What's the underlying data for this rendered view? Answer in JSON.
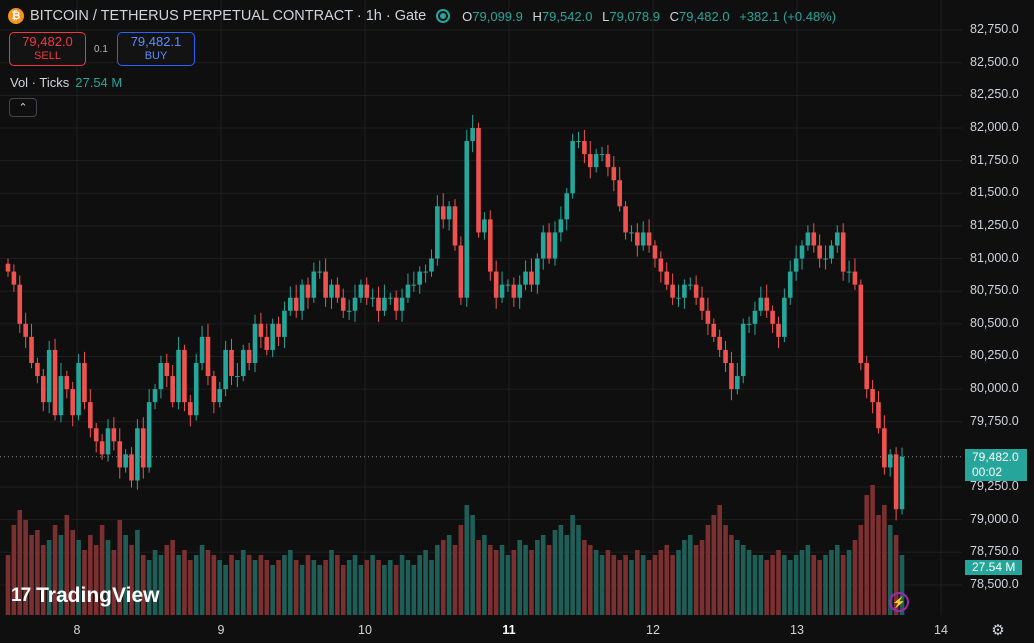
{
  "header": {
    "coin_icon": "bitcoin-icon",
    "coin_glyph": "₿",
    "symbol": "BITCOIN / TETHERUS PERPETUAL CONTRACT · 1h · Gate",
    "status": "market-open-icon",
    "ohlc": {
      "o_label": "O",
      "o": "79,099.9",
      "h_label": "H",
      "h": "79,542.0",
      "l_label": "L",
      "l": "79,078.9",
      "c_label": "C",
      "c": "79,482.0",
      "change": "+382.1 (+0.48%)"
    }
  },
  "trade": {
    "sell_price": "79,482.0",
    "sell_label": "SELL",
    "spread": "0.1",
    "buy_price": "79,482.1",
    "buy_label": "BUY"
  },
  "volume_legend": {
    "label": "Vol · Ticks",
    "value": "27.54 M"
  },
  "collapse_glyph": "⌃",
  "last_price": {
    "price": "79,482.0",
    "countdown": "00:02"
  },
  "last_volume": "27.54 M",
  "brand": {
    "mark": "17",
    "name": "TradingView"
  },
  "bolt_glyph": "⚡",
  "gear_glyph": "⚙",
  "colors": {
    "up": "#26a69a",
    "down": "#ef5350",
    "background": "#0f0f0f",
    "grid": "#1e1e1e"
  },
  "chart_data": {
    "type": "candlestick",
    "y_axis_ticks": [
      "82,750.0",
      "82,500.0",
      "82,250.0",
      "82,000.0",
      "81,750.0",
      "81,500.0",
      "81,250.0",
      "81,000.0",
      "80,750.0",
      "80,500.0",
      "80,250.0",
      "80,000.0",
      "79,750.0",
      "79,250.0",
      "79,000.0",
      "78,750.0",
      "78,500.0"
    ],
    "ylim": [
      78400,
      82850
    ],
    "x_axis_ticks": [
      {
        "label": "8",
        "bold": false
      },
      {
        "label": "9",
        "bold": false
      },
      {
        "label": "10",
        "bold": false
      },
      {
        "label": "11",
        "bold": true
      },
      {
        "label": "12",
        "bold": false
      },
      {
        "label": "13",
        "bold": false
      },
      {
        "label": "14",
        "bold": false
      }
    ],
    "closes": [
      80900,
      80800,
      80500,
      80400,
      80200,
      80100,
      79900,
      80300,
      79800,
      80100,
      80000,
      79800,
      80200,
      79900,
      79700,
      79600,
      79500,
      79700,
      79600,
      79400,
      79500,
      79300,
      79700,
      79400,
      79900,
      80000,
      80200,
      80100,
      79900,
      80300,
      79900,
      79800,
      80200,
      80400,
      80100,
      79900,
      80000,
      80300,
      80100,
      80100,
      80300,
      80200,
      80500,
      80400,
      80300,
      80500,
      80400,
      80600,
      80700,
      80600,
      80800,
      80700,
      80900,
      80900,
      80700,
      80800,
      80700,
      80600,
      80600,
      80700,
      80800,
      80700,
      80700,
      80600,
      80700,
      80700,
      80600,
      80700,
      80800,
      80800,
      80900,
      80900,
      81000,
      81400,
      81300,
      81400,
      81100,
      80700,
      81900,
      82000,
      81200,
      81300,
      80900,
      80700,
      80800,
      80800,
      80700,
      80800,
      80900,
      80800,
      81000,
      81200,
      81000,
      81200,
      81300,
      81500,
      81900,
      81900,
      81800,
      81700,
      81800,
      81800,
      81700,
      81600,
      81400,
      81200,
      81200,
      81100,
      81200,
      81100,
      81000,
      80900,
      80800,
      80700,
      80700,
      80800,
      80800,
      80700,
      80600,
      80500,
      80400,
      80300,
      80200,
      80000,
      80100,
      80500,
      80500,
      80600,
      80700,
      80600,
      80500,
      80400,
      80700,
      80900,
      81000,
      81100,
      81200,
      81100,
      81000,
      81000,
      81100,
      81200,
      80900,
      80900,
      80800,
      80200,
      80000,
      79900,
      79700,
      79400,
      79500,
      79080,
      79482
    ],
    "volumes_pct": [
      12,
      18,
      21,
      19,
      16,
      17,
      14,
      15,
      18,
      16,
      20,
      17,
      15,
      13,
      16,
      14,
      18,
      15,
      13,
      19,
      16,
      14,
      17,
      12,
      11,
      13,
      12,
      14,
      15,
      12,
      13,
      11,
      12,
      14,
      13,
      12,
      11,
      10,
      12,
      11,
      13,
      12,
      11,
      12,
      11,
      10,
      11,
      12,
      13,
      11,
      10,
      12,
      11,
      10,
      11,
      13,
      12,
      10,
      11,
      12,
      10,
      11,
      12,
      11,
      10,
      11,
      10,
      12,
      11,
      10,
      12,
      13,
      11,
      14,
      15,
      16,
      14,
      18,
      22,
      20,
      15,
      16,
      14,
      13,
      14,
      12,
      13,
      15,
      14,
      13,
      15,
      16,
      14,
      17,
      18,
      16,
      20,
      18,
      15,
      14,
      13,
      12,
      13,
      12,
      11,
      12,
      11,
      13,
      12,
      11,
      12,
      13,
      14,
      12,
      13,
      15,
      16,
      14,
      15,
      18,
      20,
      22,
      18,
      16,
      15,
      14,
      13,
      12,
      12,
      11,
      12,
      13,
      12,
      11,
      12,
      13,
      14,
      12,
      11,
      12,
      13,
      14,
      12,
      13,
      15,
      18,
      24,
      26,
      20,
      22,
      18,
      16,
      12
    ]
  }
}
